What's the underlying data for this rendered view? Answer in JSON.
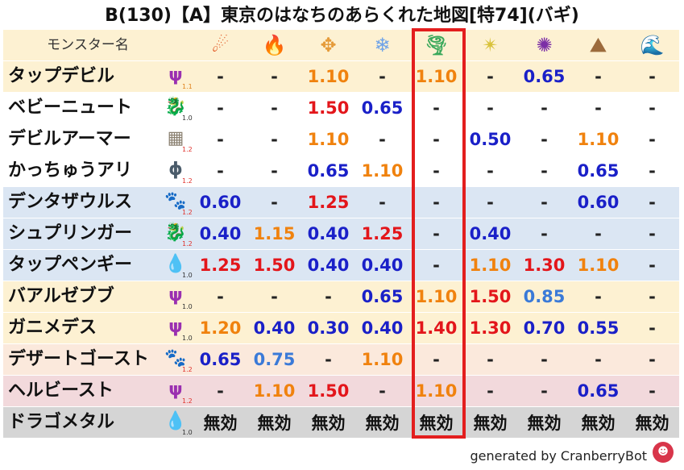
{
  "title": "B(130)【A】東京のはなちのあらくれた地図[特74](バギ)",
  "header": {
    "name_label": "モンスター名",
    "elements": [
      {
        "key": "mera",
        "icon": "fire-ball-icon",
        "glyph": "☄",
        "color": "#e04f1a"
      },
      {
        "key": "gira",
        "icon": "flame-icon",
        "glyph": "🔥",
        "color": "#e8621c"
      },
      {
        "key": "io",
        "icon": "explosion-icon",
        "glyph": "✥",
        "color": "#e59b3a"
      },
      {
        "key": "hyado",
        "icon": "ice-crystal-icon",
        "glyph": "❄",
        "color": "#6fa3e8"
      },
      {
        "key": "bagi",
        "icon": "tornado-icon",
        "glyph": "🌪",
        "color": "#39a85a"
      },
      {
        "key": "dein",
        "icon": "lightning-icon",
        "glyph": "✴",
        "color": "#d9c23a"
      },
      {
        "key": "doruma",
        "icon": "dark-vortex-icon",
        "glyph": "✺",
        "color": "#7b2ea6"
      },
      {
        "key": "jibaria",
        "icon": "rock-spikes-icon",
        "glyph": "⛰",
        "color": "#9c6b3c"
      },
      {
        "key": "hyaku",
        "icon": "wave-icon",
        "glyph": "🌊",
        "color": "#2a73c8"
      }
    ]
  },
  "rows": [
    {
      "name": "タップデビル",
      "type_icon": "devil-trident-icon",
      "glyph": "ψ",
      "glyph_color": "#9a2fb0",
      "level": "1.1",
      "level_tone": "hi",
      "bg": "#fdf1d2",
      "values": [
        {
          "v": "-",
          "c": "dash"
        },
        {
          "v": "-",
          "c": "dash"
        },
        {
          "v": "1.10",
          "c": "orange"
        },
        {
          "v": "-",
          "c": "dash"
        },
        {
          "v": "1.10",
          "c": "orange"
        },
        {
          "v": "-",
          "c": "dash"
        },
        {
          "v": "0.65",
          "c": "blue"
        },
        {
          "v": "-",
          "c": "dash"
        },
        {
          "v": "-",
          "c": "dash"
        }
      ]
    },
    {
      "name": "ベビーニュート",
      "type_icon": "dragon-icon",
      "glyph": "🐉",
      "glyph_color": "#c3202a",
      "level": "1.0",
      "level_tone": "",
      "bg": "#ffffff",
      "values": [
        {
          "v": "-",
          "c": "dash"
        },
        {
          "v": "-",
          "c": "dash"
        },
        {
          "v": "1.50",
          "c": "red"
        },
        {
          "v": "0.65",
          "c": "blue"
        },
        {
          "v": "-",
          "c": "dash"
        },
        {
          "v": "-",
          "c": "dash"
        },
        {
          "v": "-",
          "c": "dash"
        },
        {
          "v": "-",
          "c": "dash"
        },
        {
          "v": "-",
          "c": "dash"
        }
      ]
    },
    {
      "name": "デビルアーマー",
      "type_icon": "material-brick-icon",
      "glyph": "▦",
      "glyph_color": "#8a8070",
      "level": "1.2",
      "level_tone": "mx",
      "bg": "#ffffff",
      "values": [
        {
          "v": "-",
          "c": "dash"
        },
        {
          "v": "-",
          "c": "dash"
        },
        {
          "v": "1.10",
          "c": "orange"
        },
        {
          "v": "-",
          "c": "dash"
        },
        {
          "v": "-",
          "c": "dash"
        },
        {
          "v": "0.50",
          "c": "blue"
        },
        {
          "v": "-",
          "c": "dash"
        },
        {
          "v": "1.10",
          "c": "orange"
        },
        {
          "v": "-",
          "c": "dash"
        }
      ]
    },
    {
      "name": "かっちゅうアリ",
      "type_icon": "insect-icon",
      "glyph": "ɸ",
      "glyph_color": "#4a5b6a",
      "level": "1.2",
      "level_tone": "mx",
      "bg": "#ffffff",
      "values": [
        {
          "v": "-",
          "c": "dash"
        },
        {
          "v": "-",
          "c": "dash"
        },
        {
          "v": "0.65",
          "c": "blue"
        },
        {
          "v": "1.10",
          "c": "orange"
        },
        {
          "v": "-",
          "c": "dash"
        },
        {
          "v": "-",
          "c": "dash"
        },
        {
          "v": "-",
          "c": "dash"
        },
        {
          "v": "0.65",
          "c": "blue"
        },
        {
          "v": "-",
          "c": "dash"
        }
      ]
    },
    {
      "name": "デンタザウルス",
      "type_icon": "beast-paw-icon",
      "glyph": "🐾",
      "glyph_color": "#d88a1e",
      "level": "1.2",
      "level_tone": "mx",
      "bg": "#dbe6f3",
      "values": [
        {
          "v": "0.60",
          "c": "blue"
        },
        {
          "v": "-",
          "c": "dash"
        },
        {
          "v": "1.25",
          "c": "red"
        },
        {
          "v": "-",
          "c": "dash"
        },
        {
          "v": "-",
          "c": "dash"
        },
        {
          "v": "-",
          "c": "dash"
        },
        {
          "v": "-",
          "c": "dash"
        },
        {
          "v": "0.60",
          "c": "blue"
        },
        {
          "v": "-",
          "c": "dash"
        }
      ]
    },
    {
      "name": "シュプリンガー",
      "type_icon": "dragon-icon",
      "glyph": "🐉",
      "glyph_color": "#c3202a",
      "level": "1.2",
      "level_tone": "mx",
      "bg": "#dbe6f3",
      "values": [
        {
          "v": "0.40",
          "c": "blue"
        },
        {
          "v": "1.15",
          "c": "orange"
        },
        {
          "v": "0.40",
          "c": "blue"
        },
        {
          "v": "1.25",
          "c": "red"
        },
        {
          "v": "-",
          "c": "dash"
        },
        {
          "v": "0.40",
          "c": "blue"
        },
        {
          "v": "-",
          "c": "dash"
        },
        {
          "v": "-",
          "c": "dash"
        },
        {
          "v": "-",
          "c": "dash"
        }
      ]
    },
    {
      "name": "タップペンギー",
      "type_icon": "water-drop-icon",
      "glyph": "💧",
      "glyph_color": "#3a8fd8",
      "level": "1.0",
      "level_tone": "",
      "bg": "#dbe6f3",
      "values": [
        {
          "v": "1.25",
          "c": "red"
        },
        {
          "v": "1.50",
          "c": "red"
        },
        {
          "v": "0.40",
          "c": "blue"
        },
        {
          "v": "0.40",
          "c": "blue"
        },
        {
          "v": "-",
          "c": "dash"
        },
        {
          "v": "1.10",
          "c": "orange"
        },
        {
          "v": "1.30",
          "c": "red"
        },
        {
          "v": "1.10",
          "c": "orange"
        },
        {
          "v": "-",
          "c": "dash"
        }
      ]
    },
    {
      "name": "バアルゼブブ",
      "type_icon": "devil-trident-icon",
      "glyph": "ψ",
      "glyph_color": "#9a2fb0",
      "level": "1.0",
      "level_tone": "",
      "bg": "#fdf1d2",
      "values": [
        {
          "v": "-",
          "c": "dash"
        },
        {
          "v": "-",
          "c": "dash"
        },
        {
          "v": "-",
          "c": "dash"
        },
        {
          "v": "0.65",
          "c": "blue"
        },
        {
          "v": "1.10",
          "c": "orange"
        },
        {
          "v": "1.50",
          "c": "red"
        },
        {
          "v": "0.85",
          "c": "lblue"
        },
        {
          "v": "-",
          "c": "dash"
        },
        {
          "v": "-",
          "c": "dash"
        }
      ]
    },
    {
      "name": "ガニメデス",
      "type_icon": "devil-trident-icon",
      "glyph": "ψ",
      "glyph_color": "#9a2fb0",
      "level": "1.0",
      "level_tone": "",
      "bg": "#fdf1d2",
      "values": [
        {
          "v": "1.20",
          "c": "orange"
        },
        {
          "v": "0.40",
          "c": "blue"
        },
        {
          "v": "0.30",
          "c": "blue"
        },
        {
          "v": "0.40",
          "c": "blue"
        },
        {
          "v": "1.40",
          "c": "red"
        },
        {
          "v": "1.30",
          "c": "red"
        },
        {
          "v": "0.70",
          "c": "blue"
        },
        {
          "v": "0.55",
          "c": "blue"
        },
        {
          "v": "-",
          "c": "dash"
        }
      ]
    },
    {
      "name": "デザートゴースト",
      "type_icon": "beast-paw-icon",
      "glyph": "🐾",
      "glyph_color": "#d88a1e",
      "level": "1.2",
      "level_tone": "mx",
      "bg": "#fbe9dc",
      "values": [
        {
          "v": "0.65",
          "c": "blue"
        },
        {
          "v": "0.75",
          "c": "lblue"
        },
        {
          "v": "-",
          "c": "dash"
        },
        {
          "v": "1.10",
          "c": "orange"
        },
        {
          "v": "-",
          "c": "dash"
        },
        {
          "v": "-",
          "c": "dash"
        },
        {
          "v": "-",
          "c": "dash"
        },
        {
          "v": "-",
          "c": "dash"
        },
        {
          "v": "-",
          "c": "dash"
        }
      ]
    },
    {
      "name": "ヘルビースト",
      "type_icon": "devil-trident-icon",
      "glyph": "ψ",
      "glyph_color": "#9a2fb0",
      "level": "1.2",
      "level_tone": "mx",
      "bg": "#f2d9dc",
      "values": [
        {
          "v": "-",
          "c": "dash"
        },
        {
          "v": "1.10",
          "c": "orange"
        },
        {
          "v": "1.50",
          "c": "red"
        },
        {
          "v": "-",
          "c": "dash"
        },
        {
          "v": "1.10",
          "c": "orange"
        },
        {
          "v": "-",
          "c": "dash"
        },
        {
          "v": "-",
          "c": "dash"
        },
        {
          "v": "0.65",
          "c": "blue"
        },
        {
          "v": "-",
          "c": "dash"
        }
      ]
    },
    {
      "name": "ドラゴメタル",
      "type_icon": "slime-icon",
      "glyph": "💧",
      "glyph_color": "#3a72c8",
      "level": "1.0",
      "level_tone": "",
      "bg": "#d5d5d5",
      "values": [
        {
          "v": "無効",
          "c": "nul"
        },
        {
          "v": "無効",
          "c": "nul"
        },
        {
          "v": "無効",
          "c": "nul"
        },
        {
          "v": "無効",
          "c": "nul"
        },
        {
          "v": "無効",
          "c": "nul"
        },
        {
          "v": "無効",
          "c": "nul"
        },
        {
          "v": "無効",
          "c": "nul"
        },
        {
          "v": "無効",
          "c": "nul"
        },
        {
          "v": "無効",
          "c": "nul"
        }
      ]
    }
  ],
  "footer": {
    "text": "generated by CranberryBot",
    "bot_icon": "cranberry-bot-icon",
    "bot_glyph": "☻"
  },
  "highlight_column_key": "bagi",
  "colors": {
    "header_bg": "#fdf1d2",
    "highlight_border": "#e31e1e"
  }
}
